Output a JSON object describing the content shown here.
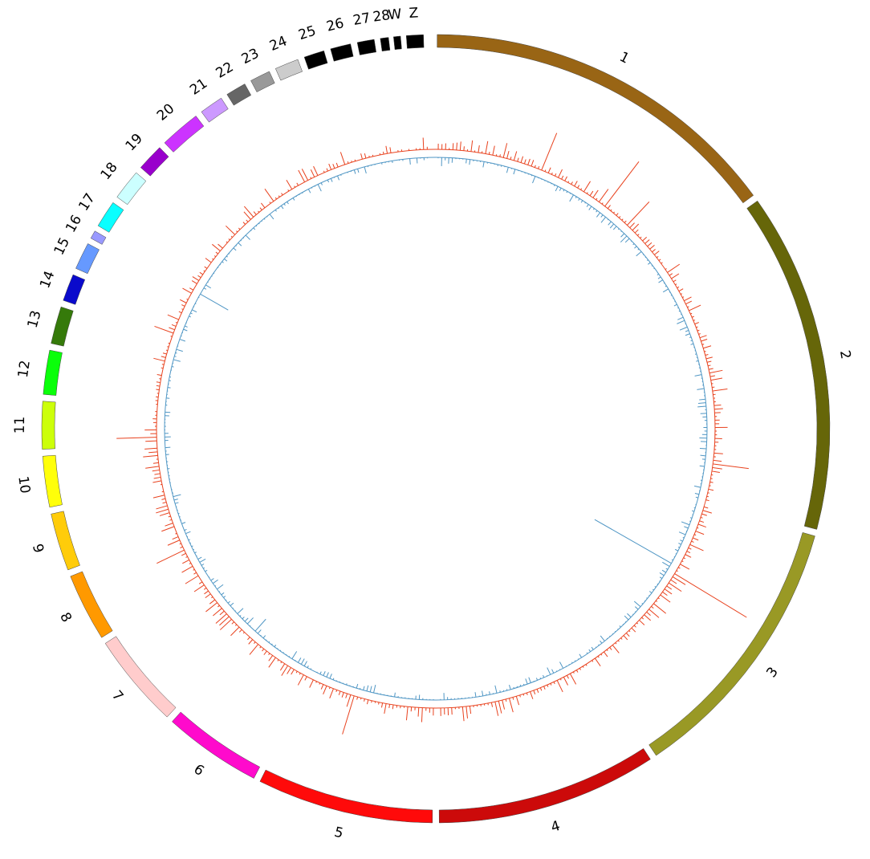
{
  "chart_data": {
    "type": "circos",
    "chromosomes": [
      {
        "label": "1",
        "color": "#996515"
      },
      {
        "label": "2",
        "color": "#666609"
      },
      {
        "label": "3",
        "color": "#999925"
      },
      {
        "label": "4",
        "color": "#cc0a0a"
      },
      {
        "label": "5",
        "color": "#ff0a0a"
      },
      {
        "label": "6",
        "color": "#ff0acc"
      },
      {
        "label": "7",
        "color": "#ffcccc"
      },
      {
        "label": "8",
        "color": "#ff9900"
      },
      {
        "label": "9",
        "color": "#ffcc0a"
      },
      {
        "label": "10",
        "color": "#ffff0a"
      },
      {
        "label": "11",
        "color": "#ccff0a"
      },
      {
        "label": "12",
        "color": "#0aff0a"
      },
      {
        "label": "13",
        "color": "#357a0a"
      },
      {
        "label": "14",
        "color": "#0a0acc"
      },
      {
        "label": "15",
        "color": "#6699ff"
      },
      {
        "label": "16",
        "color": "#9999ff"
      },
      {
        "label": "17",
        "color": "#0affff"
      },
      {
        "label": "18",
        "color": "#ccffff"
      },
      {
        "label": "19",
        "color": "#9900cc"
      },
      {
        "label": "20",
        "color": "#cc33ff"
      },
      {
        "label": "21",
        "color": "#cc99ff"
      },
      {
        "label": "22",
        "color": "#666666"
      },
      {
        "label": "23",
        "color": "#999999"
      },
      {
        "label": "24",
        "color": "#cccccc"
      },
      {
        "label": "25",
        "color": "#000000"
      },
      {
        "label": "26",
        "color": "#000000"
      },
      {
        "label": "27",
        "color": "#000000"
      },
      {
        "label": "28",
        "color": "#000000"
      },
      {
        "label": "W",
        "color": "#000000"
      },
      {
        "label": "Z",
        "color": "#000000"
      }
    ],
    "tracks": [
      {
        "color": "#e8421e",
        "direction": "outward"
      },
      {
        "color": "#4f96c4",
        "direction": "inward"
      }
    ]
  }
}
